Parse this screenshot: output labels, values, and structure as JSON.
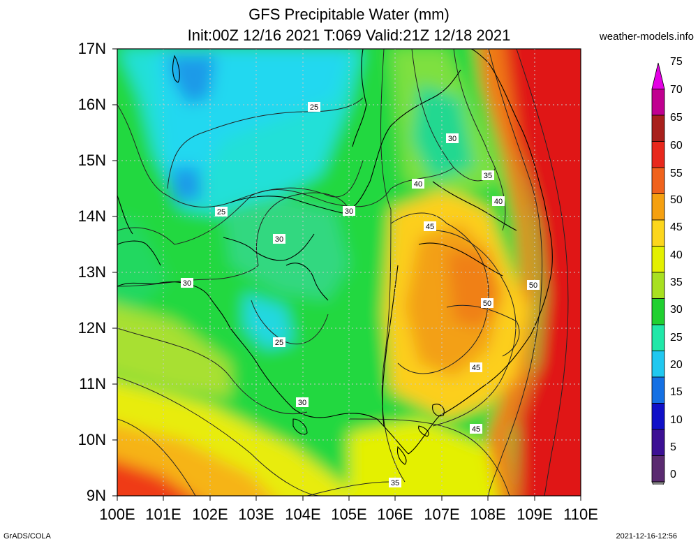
{
  "title_line1": "GFS Precipitable Water (mm)",
  "title_line2": "Init:00Z 12/16 2021 T:069 Valid:21Z 12/18 2021",
  "credit": "weather-models.info",
  "footer_left": "GrADS/COLA",
  "footer_right": "2021-12-16-12:56",
  "lat_labels": [
    "17N",
    "16N",
    "15N",
    "14N",
    "13N",
    "12N",
    "11N",
    "10N",
    "9N"
  ],
  "lon_labels": [
    "100E",
    "101E",
    "102E",
    "103E",
    "104E",
    "105E",
    "106E",
    "107E",
    "108E",
    "109E",
    "110E"
  ],
  "colorbar": {
    "levels": [
      "75",
      "70",
      "65",
      "60",
      "55",
      "50",
      "45",
      "40",
      "35",
      "30",
      "25",
      "20",
      "15",
      "10",
      "5",
      "0"
    ],
    "colors": [
      "#e400e4",
      "#c00090",
      "#a8201c",
      "#e8281c",
      "#f0621c",
      "#f5a010",
      "#fcd61c",
      "#e4f000",
      "#a8e020",
      "#20d030",
      "#20e8a8",
      "#20c8f0",
      "#1470e4",
      "#1010c8",
      "#3c1094",
      "#5a2a70",
      "#808080"
    ]
  },
  "contour_labels": [
    {
      "text": "25"
    },
    {
      "text": "25"
    },
    {
      "text": "25"
    },
    {
      "text": "30"
    },
    {
      "text": "30"
    },
    {
      "text": "30"
    },
    {
      "text": "30"
    },
    {
      "text": "30"
    },
    {
      "text": "35"
    },
    {
      "text": "35"
    },
    {
      "text": "40"
    },
    {
      "text": "40"
    },
    {
      "text": "45"
    },
    {
      "text": "45"
    },
    {
      "text": "45"
    },
    {
      "text": "50"
    },
    {
      "text": "50"
    }
  ]
}
